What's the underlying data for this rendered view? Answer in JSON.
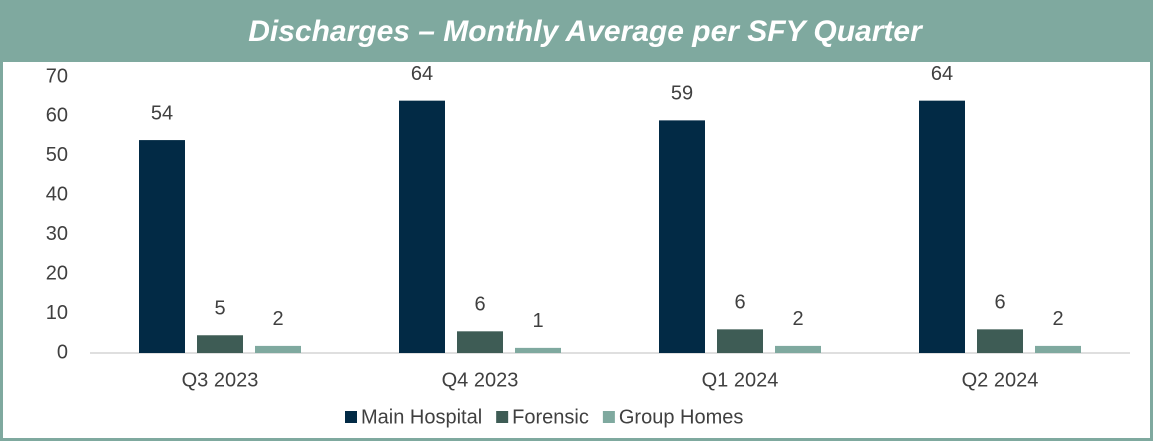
{
  "chart_data": {
    "type": "bar",
    "title": "Discharges – Monthly Average per SFY Quarter",
    "categories": [
      "Q3 2023",
      "Q4 2023",
      "Q1 2024",
      "Q2 2024"
    ],
    "series": [
      {
        "name": "Main Hospital",
        "color": "#022a45",
        "values": [
          54,
          64,
          59,
          64
        ],
        "value_labels": [
          "54",
          "64",
          "59",
          "64"
        ]
      },
      {
        "name": "Forensic",
        "color": "#3e5c55",
        "values": [
          4.5,
          5.5,
          6,
          6
        ],
        "value_labels": [
          "5",
          "6",
          "6",
          "6"
        ]
      },
      {
        "name": "Group Homes",
        "color": "#7fa99f",
        "values": [
          1.8,
          1.3,
          1.8,
          1.8
        ],
        "value_labels": [
          "2",
          "1",
          "2",
          "2"
        ]
      }
    ],
    "ylim": [
      0,
      70
    ],
    "yticks": [
      0,
      10,
      20,
      30,
      40,
      50,
      60,
      70
    ],
    "grid": false,
    "legend": "bottom"
  }
}
